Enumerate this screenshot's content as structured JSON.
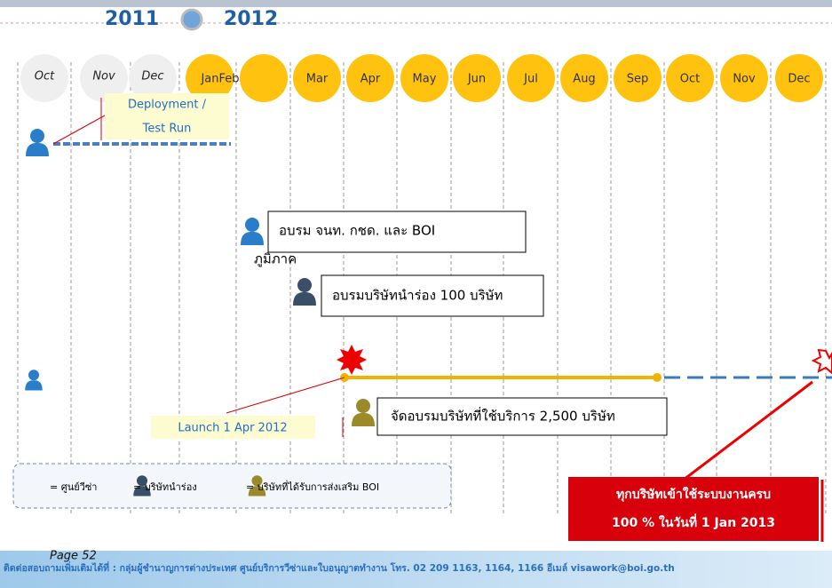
{
  "header": {
    "year_start": "2011",
    "year_end": "2012"
  },
  "months": [
    "Oct",
    "Nov",
    "Dec",
    "JanFeb",
    "Mar",
    "Apr",
    "May",
    "Jun",
    "Jul",
    "Aug",
    "Sep",
    "Oct",
    "Nov",
    "Dec"
  ],
  "deployment": {
    "lines": [
      "Deployment /",
      "Test Run"
    ]
  },
  "training_officers": {
    "label": "อบรม จนท. กชด. และ BOI",
    "sub": "ภูมิภาค"
  },
  "training_pilot": {
    "label": "อบรมบริษัทนำร่อง 100 บริษัท"
  },
  "launch": {
    "label": "Launch 1 Apr 2012"
  },
  "training_all": {
    "label": "จัดอบรมบริษัทที่ใช้บริการ 2,500 บริษัท"
  },
  "goal": {
    "lines": [
      "ทุกบริษัทเข้าใช้ระบบงานครบ",
      "100 % ในวันที่ 1 Jan 2013"
    ]
  },
  "legend": [
    "= ศูนย์วีซ่า",
    "= บริษัทนำร่อง",
    "= บริษัทที่ได้รับการส่งเสริม BOI"
  ],
  "footer": {
    "page": "Page 52",
    "contact": "ติดต่อสอบถามเพิ่มเติมได้ที่ :   กลุ่มผู้ชำนาญการต่างประเทศ ศูนย์บริการวีซ่าและใบอนุญาตทำงาน โทร. 02 209 1163, 1164, 1166 อีเมล์ visawork@boi.go.th"
  }
}
